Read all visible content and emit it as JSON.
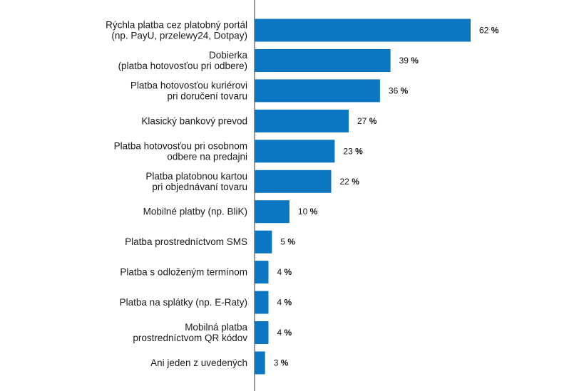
{
  "chart_data": {
    "type": "bar",
    "orientation": "horizontal",
    "title": "",
    "xlabel": "",
    "ylabel": "",
    "xlim": [
      0,
      62
    ],
    "grid": false,
    "legend": "none",
    "bar_color": "#0b76c1",
    "axis_color": "#333333",
    "value_suffix": "%",
    "categories": [
      [
        "Rýchla platba cez platobný portál",
        "(np. PayU, przelewy24, Dotpay)"
      ],
      [
        "Dobierka",
        "(platba hotovosťou pri odbere)"
      ],
      [
        "Platba hotovosťou kuriérovi",
        "pri doručení tovaru"
      ],
      [
        "Klasický bankový prevod"
      ],
      [
        "Platba hotovosťou pri osobnom",
        "odbere na predajni"
      ],
      [
        "Platba platobnou kartou",
        "pri objednávaní tovaru"
      ],
      [
        "Mobilné platby (np. BliK)"
      ],
      [
        "Platba prostredníctvom SMS"
      ],
      [
        "Platba s odloženým termínom"
      ],
      [
        "Platba na splátky (np. E-Raty)"
      ],
      [
        "Mobilná platba",
        "prostredníctvom QR kódov"
      ],
      [
        "Ani jeden z uvedených"
      ]
    ],
    "values": [
      62,
      39,
      36,
      27,
      23,
      22,
      10,
      5,
      4,
      4,
      4,
      3
    ]
  }
}
